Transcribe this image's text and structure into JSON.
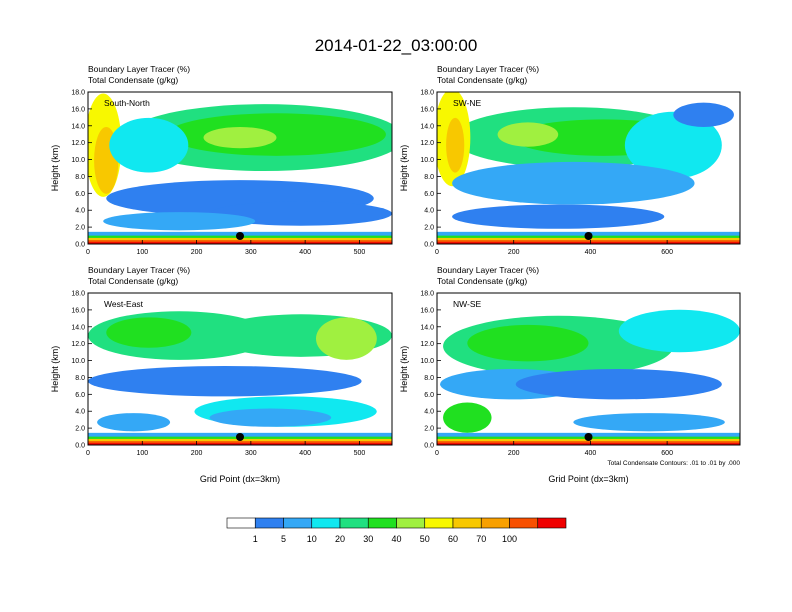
{
  "figure": {
    "title": "2014-01-22_03:00:00",
    "subtitle_line1": "Boundary Layer Tracer   (%)",
    "subtitle_line2": "Total Condensate   (g/kg)",
    "ylabel": "Height (km)",
    "xlabel": "Grid Point (dx=3km)",
    "contour_note": "Total Condensate Contours: .01 to .01 by .000"
  },
  "colorbar": {
    "colors": [
      "#ffffff",
      "#2f80f0",
      "#34a8f6",
      "#10e8f0",
      "#20e080",
      "#20e020",
      "#a0f040",
      "#f8f800",
      "#f8c800",
      "#f8a000",
      "#f85000",
      "#f00000"
    ],
    "labels": [
      "1",
      "5",
      "10",
      "20",
      "30",
      "40",
      "50",
      "60",
      "70",
      "100"
    ]
  },
  "chart_data": [
    {
      "type": "heatmap",
      "panel_label": "South-North",
      "x_ticks": [
        "0",
        "100",
        "200",
        "300",
        "400",
        "500"
      ],
      "y_ticks": [
        "0.0",
        "2.0",
        "4.0",
        "6.0",
        "8.0",
        "10.0",
        "12.0",
        "14.0",
        "16.0",
        "18.0"
      ],
      "xlim": [
        0,
        560
      ],
      "ylim": [
        0,
        18
      ],
      "marker_x": 280,
      "shows_xlabel": false
    },
    {
      "type": "heatmap",
      "panel_label": "SW-NE",
      "x_ticks": [
        "0",
        "200",
        "400",
        "600"
      ],
      "y_ticks": [
        "0.0",
        "2.0",
        "4.0",
        "6.0",
        "8.0",
        "10.0",
        "12.0",
        "14.0",
        "16.0",
        "18.0"
      ],
      "xlim": [
        0,
        790
      ],
      "ylim": [
        0,
        18
      ],
      "marker_x": 395,
      "shows_xlabel": false
    },
    {
      "type": "heatmap",
      "panel_label": "West-East",
      "x_ticks": [
        "0",
        "100",
        "200",
        "300",
        "400",
        "500"
      ],
      "y_ticks": [
        "0.0",
        "2.0",
        "4.0",
        "6.0",
        "8.0",
        "10.0",
        "12.0",
        "14.0",
        "16.0",
        "18.0"
      ],
      "xlim": [
        0,
        560
      ],
      "ylim": [
        0,
        18
      ],
      "marker_x": 280,
      "shows_xlabel": true
    },
    {
      "type": "heatmap",
      "panel_label": "NW-SE",
      "x_ticks": [
        "0",
        "200",
        "400",
        "600"
      ],
      "y_ticks": [
        "0.0",
        "2.0",
        "4.0",
        "6.0",
        "8.0",
        "10.0",
        "12.0",
        "14.0",
        "16.0",
        "18.0"
      ],
      "xlim": [
        0,
        790
      ],
      "ylim": [
        0,
        18
      ],
      "marker_x": 395,
      "shows_xlabel": true
    }
  ]
}
